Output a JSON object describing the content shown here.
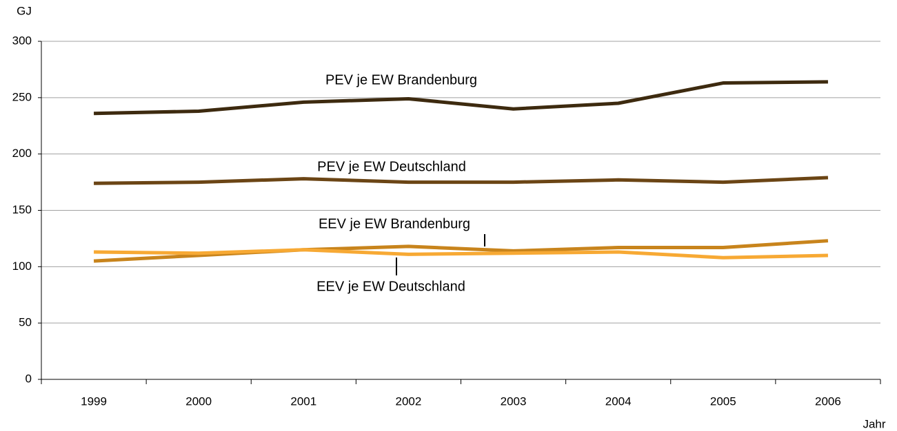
{
  "chart_data": {
    "type": "line",
    "y_label": "GJ",
    "x_label": "Jahr",
    "categories": [
      "1999",
      "2000",
      "2001",
      "2002",
      "2003",
      "2004",
      "2005",
      "2006"
    ],
    "series": [
      {
        "name": "PEV je EW Brandenburg",
        "color": "#3d2a0f",
        "values": [
          236,
          238,
          246,
          249,
          240,
          245,
          263,
          264
        ]
      },
      {
        "name": "PEV je EW Deutschland",
        "color": "#6b4515",
        "values": [
          174,
          175,
          178,
          175,
          175,
          177,
          175,
          179
        ]
      },
      {
        "name": "EEV je EW Brandenburg",
        "color": "#c8841c",
        "values": [
          105,
          110,
          115,
          118,
          114,
          117,
          117,
          123
        ]
      },
      {
        "name": "EEV je EW Deutschland",
        "color": "#f7a934",
        "values": [
          113,
          112,
          115,
          111,
          112,
          113,
          108,
          110
        ]
      }
    ],
    "ylim": [
      0,
      300
    ],
    "yticks": [
      0,
      50,
      100,
      150,
      200,
      250,
      300
    ],
    "grid": true
  }
}
